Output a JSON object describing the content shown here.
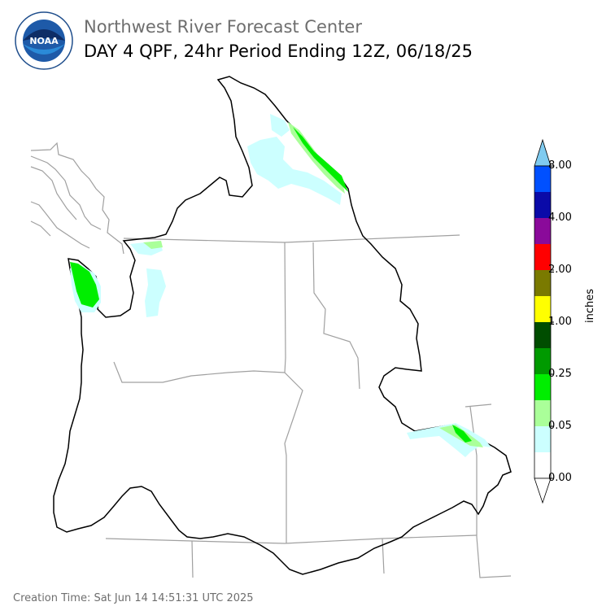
{
  "header": {
    "agency": "Northwest River Forecast Center",
    "product": "DAY 4 QPF, 24hr Period Ending 12Z, 06/18/25"
  },
  "logo": {
    "icon": "noaa-logo",
    "text": "NOAA"
  },
  "colorbar": {
    "units": "inches",
    "ticks": [
      "8.00",
      "4.00",
      "2.00",
      "1.00",
      "0.25",
      "0.05",
      "0.00"
    ],
    "bins": [
      {
        "color": "#7fcbf0"
      },
      {
        "color": "#0050ff"
      },
      {
        "color": "#0a0aa8"
      },
      {
        "color": "#8a0a9a"
      },
      {
        "color": "#ff0000"
      },
      {
        "color": "#7a7a00"
      },
      {
        "color": "#ffff00"
      },
      {
        "color": "#004d00"
      },
      {
        "color": "#009a00"
      },
      {
        "color": "#00ee00"
      },
      {
        "color": "#aaff99"
      },
      {
        "color": "#ccffff"
      },
      {
        "color": "#ffffff"
      }
    ]
  },
  "map": {
    "precip_colors": {
      "trace": "#ccffff",
      "light": "#aaff99",
      "moderate": "#00ee00",
      "heavy": "#009a00"
    }
  },
  "footer": {
    "creation_time": "Creation Time: Sat Jun 14 14:51:31 UTC 2025"
  }
}
